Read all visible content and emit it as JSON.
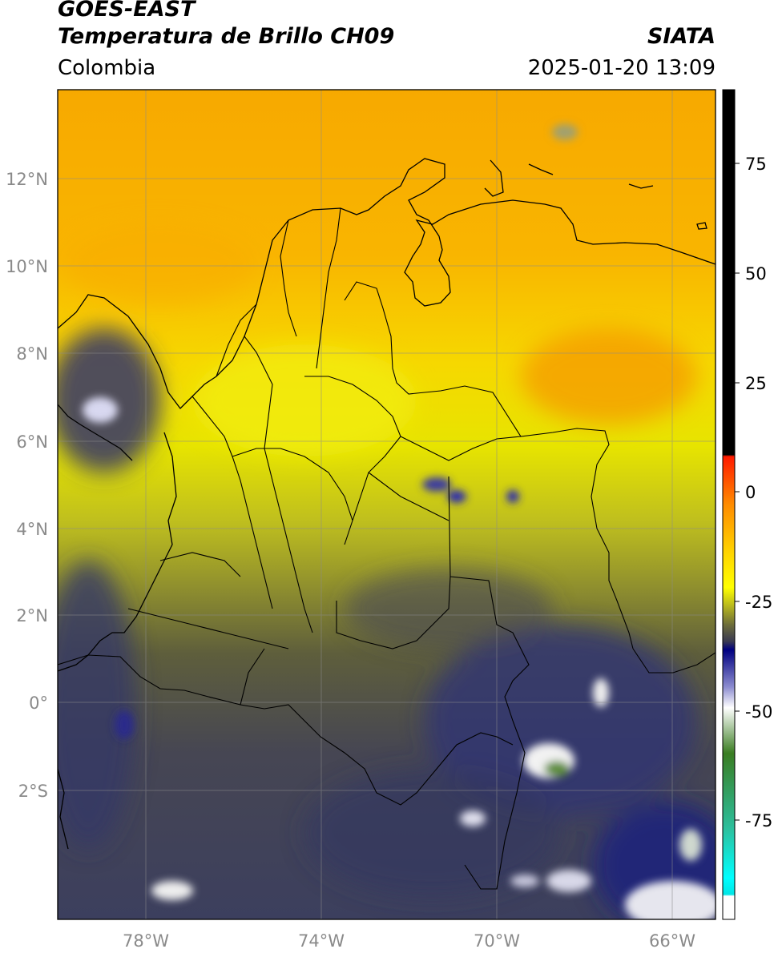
{
  "header": {
    "satellite": "GOES-EAST",
    "product": "Temperatura de Brillo CH09",
    "region": "Colombia",
    "agency": "SIATA",
    "timestamp": "2025-01-20 13:09"
  },
  "map": {
    "lon_range": [
      -80.0,
      -65.0
    ],
    "lat_range": [
      -4.6,
      14.0
    ],
    "lat_ticks": [
      "12°N",
      "10°N",
      "8°N",
      "6°N",
      "4°N",
      "2°N",
      "0°",
      "2°S"
    ],
    "lat_values": [
      12,
      10,
      8,
      6,
      4,
      2,
      0,
      -2
    ],
    "lon_ticks": [
      "78°W",
      "74°W",
      "70°W",
      "66°W"
    ],
    "lon_values": [
      -78,
      -74,
      -70,
      -66
    ],
    "grid": true
  },
  "colorbar": {
    "ticks": [
      "75",
      "50",
      "25",
      "0",
      "-25",
      "-50",
      "-75"
    ],
    "tick_values": [
      75,
      50,
      25,
      0,
      -25,
      -50,
      -75
    ],
    "range": [
      -95,
      90
    ]
  }
}
